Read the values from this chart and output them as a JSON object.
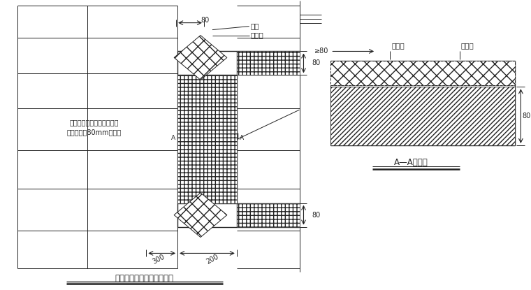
{
  "bg_color": "#ffffff",
  "line_color": "#222222",
  "title_left": "门窗洞口附加网格布示意图",
  "title_right": "A—A剖面图",
  "label_fj": "附加",
  "label_wgb": "网格布",
  "label_ge80": "≥80",
  "label_wgb2": "网格布",
  "label_xsb": "挤塑板",
  "label_300": "300",
  "label_200": "200",
  "label_A": "A",
  "label_text1": "与墙体接触一面用粘结砂浆",
  "label_text2": "预粘不小于80mm网格布"
}
